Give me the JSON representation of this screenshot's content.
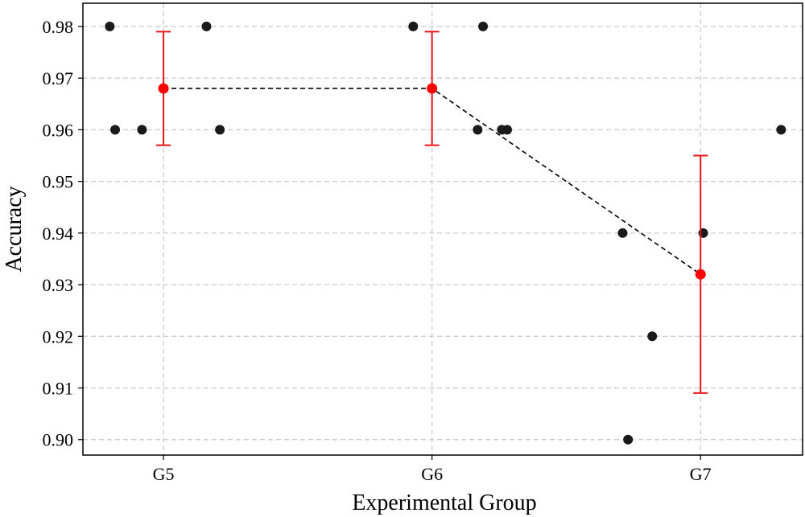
{
  "chart_data": {
    "type": "scatter",
    "title": "",
    "xlabel": "Experimental Group",
    "ylabel": "Accuracy",
    "categories": [
      "G5",
      "G6",
      "G7"
    ],
    "ylim": [
      0.897,
      0.9845
    ],
    "yticks": [
      0.9,
      0.91,
      0.92,
      0.93,
      0.94,
      0.95,
      0.96,
      0.97,
      0.98
    ],
    "ytick_labels": [
      "0.90",
      "0.91",
      "0.92",
      "0.93",
      "0.94",
      "0.95",
      "0.96",
      "0.97",
      "0.98"
    ],
    "grid": true,
    "points": [
      {
        "x": -0.2,
        "y": 0.98
      },
      {
        "x": -0.18,
        "y": 0.96
      },
      {
        "x": -0.08,
        "y": 0.96
      },
      {
        "x": 0.16,
        "y": 0.98
      },
      {
        "x": 0.21,
        "y": 0.96
      },
      {
        "x": 0.93,
        "y": 0.98
      },
      {
        "x": 1.17,
        "y": 0.96
      },
      {
        "x": 1.19,
        "y": 0.98
      },
      {
        "x": 1.26,
        "y": 0.96
      },
      {
        "x": 1.28,
        "y": 0.96
      },
      {
        "x": 1.71,
        "y": 0.94
      },
      {
        "x": 1.73,
        "y": 0.9
      },
      {
        "x": 1.82,
        "y": 0.92
      },
      {
        "x": 2.01,
        "y": 0.94
      },
      {
        "x": 2.3,
        "y": 0.96
      }
    ],
    "means": [
      {
        "group": "G5",
        "mean": 0.968,
        "err_low": 0.957,
        "err_high": 0.979
      },
      {
        "group": "G6",
        "mean": 0.968,
        "err_low": 0.957,
        "err_high": 0.979
      },
      {
        "group": "G7",
        "mean": 0.932,
        "err_low": 0.909,
        "err_high": 0.955
      }
    ],
    "colors": {
      "points": "#1a1a1a",
      "mean": "#ff0000",
      "errorbar": "#e8141a",
      "trend": "#000000"
    }
  }
}
